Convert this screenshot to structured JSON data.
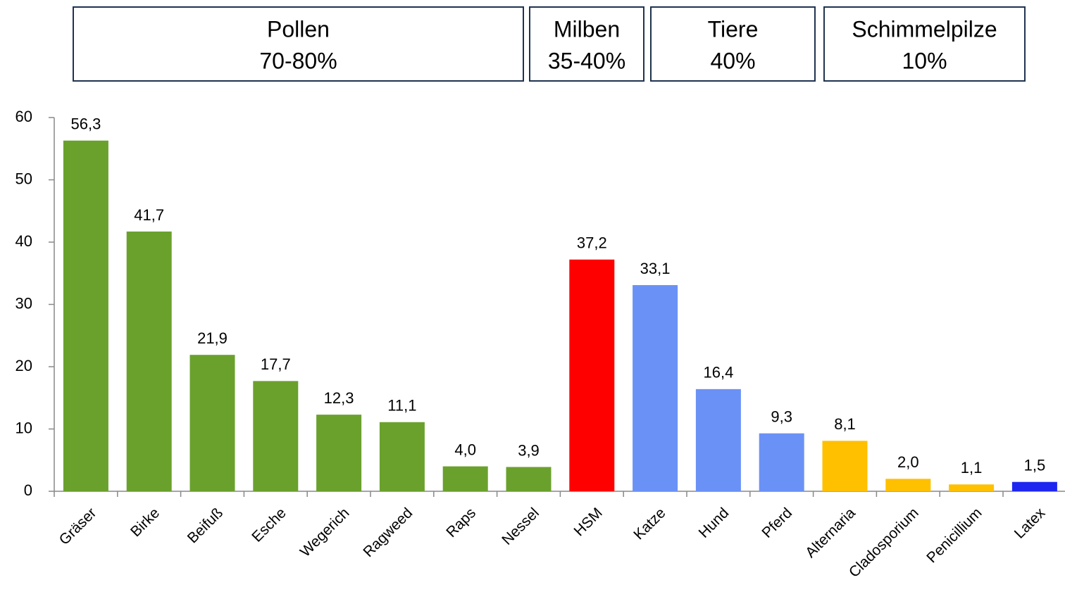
{
  "chart_data": {
    "type": "bar",
    "groups": [
      {
        "name": "Pollen",
        "label": "70-80%"
      },
      {
        "name": "Milben",
        "label": "35-40%"
      },
      {
        "name": "Tiere",
        "label": "40%"
      },
      {
        "name": "Schimmelpilze",
        "label": "10%"
      }
    ],
    "categories": [
      "Gräser",
      "Birke",
      "Beifuß",
      "Esche",
      "Wegerich",
      "Ragweed",
      "Raps",
      "Nessel",
      "HSM",
      "Katze",
      "Hund",
      "Pferd",
      "Alternaria",
      "Cladosporium",
      "Penicillium",
      "Latex"
    ],
    "values": [
      56.3,
      41.7,
      21.9,
      17.7,
      12.3,
      11.1,
      4.0,
      3.9,
      37.2,
      33.1,
      16.4,
      9.3,
      8.1,
      2.0,
      1.1,
      1.5
    ],
    "value_labels": [
      "56,3",
      "41,7",
      "21,9",
      "17,7",
      "12,3",
      "11,1",
      "4,0",
      "3,9",
      "37,2",
      "33,1",
      "16,4",
      "9,3",
      "8,1",
      "2,0",
      "1,1",
      "1,5"
    ],
    "colors": [
      "#6aa12d",
      "#6aa12d",
      "#6aa12d",
      "#6aa12d",
      "#6aa12d",
      "#6aa12d",
      "#6aa12d",
      "#6aa12d",
      "#ff0000",
      "#6a91f5",
      "#6a91f5",
      "#6a91f5",
      "#ffc000",
      "#ffc000",
      "#ffc000",
      "#1f26f0"
    ],
    "ylim": [
      0,
      60
    ],
    "yticks": [
      0,
      10,
      20,
      30,
      40,
      50,
      60
    ]
  }
}
